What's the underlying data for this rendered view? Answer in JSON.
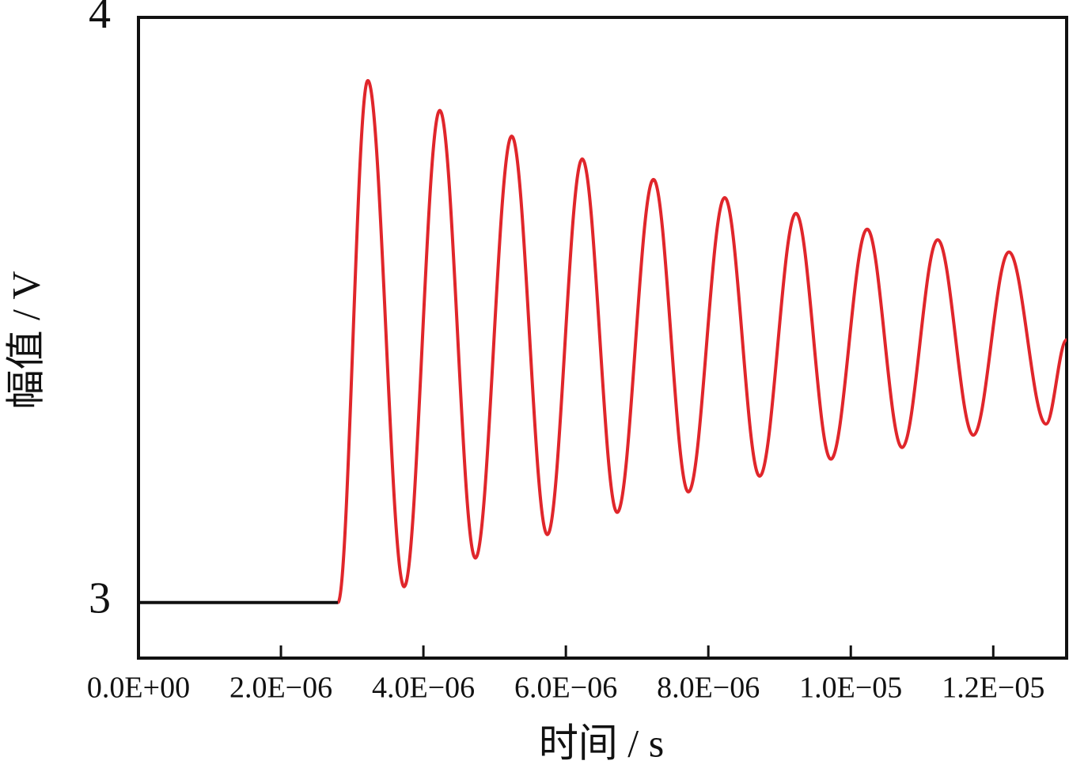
{
  "chart_data": {
    "type": "line",
    "xlabel": "时间 / s",
    "ylabel": "幅值 / V",
    "xlim": [
      0,
      1.303e-05
    ],
    "ylim": [
      2.905,
      4
    ],
    "xticks": [
      {
        "value": 0,
        "label": "0.0E+00"
      },
      {
        "value": 2e-06,
        "label": "2.0E−06"
      },
      {
        "value": 4e-06,
        "label": "4.0E−06"
      },
      {
        "value": 6e-06,
        "label": "6.0E−06"
      },
      {
        "value": 8e-06,
        "label": "8.0E−06"
      },
      {
        "value": 1e-05,
        "label": "1.0E−05"
      },
      {
        "value": 1.2e-05,
        "label": "1.2E−05"
      }
    ],
    "yticks": [
      3,
      4
    ],
    "series": [
      {
        "color": "#111111",
        "x": [
          0,
          2.8e-06
        ],
        "values": [
          3,
          3
        ]
      },
      {
        "color": "#e0262b",
        "x": [
          2.8e-06,
          3.22e-06,
          3.73e-06,
          4.23e-06,
          4.73e-06,
          5.24e-06,
          5.74e-06,
          6.23e-06,
          6.72e-06,
          7.23e-06,
          7.72e-06,
          8.23e-06,
          8.72e-06,
          9.23e-06,
          9.72e-06,
          1.023e-05,
          1.072e-05,
          1.122e-05,
          1.172e-05,
          1.222e-05,
          1.274e-05,
          1.303e-05
        ],
        "values": [
          3,
          3.892,
          3.027,
          3.841,
          3.076,
          3.797,
          3.116,
          3.758,
          3.154,
          3.723,
          3.189,
          3.692,
          3.216,
          3.665,
          3.245,
          3.638,
          3.265,
          3.62,
          3.286,
          3.599,
          3.305,
          3.449
        ]
      }
    ]
  }
}
